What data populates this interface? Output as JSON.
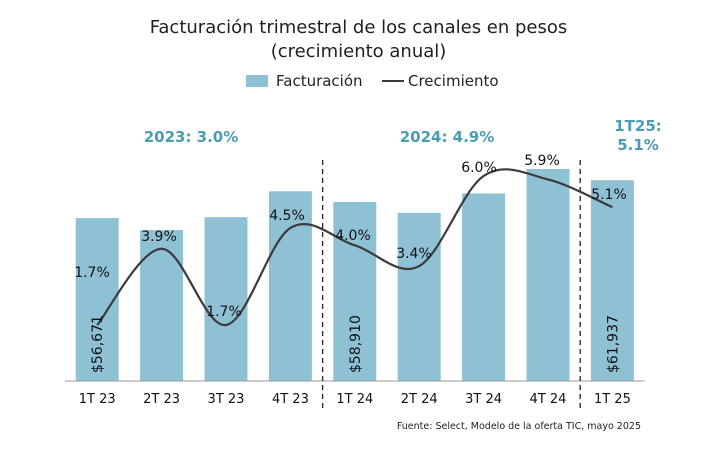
{
  "chart_data": {
    "type": "bar",
    "title_line1": "Facturación trimestral de los canales en pesos",
    "title_line2": "(crecimiento anual)",
    "legend": {
      "bar": "Facturación",
      "line": "Crecimiento",
      "placement": "top-center"
    },
    "categories": [
      "1T 23",
      "2T 23",
      "3T 23",
      "4T 23",
      "1T 24",
      "2T 24",
      "3T 24",
      "4T 24",
      "1T 25"
    ],
    "series": [
      {
        "name": "Facturación",
        "type": "bar",
        "values": [
          56671,
          55000,
          56800,
          60400,
          58910,
          57400,
          60100,
          63500,
          61937
        ],
        "labels": [
          "$56,671",
          "",
          "",
          "",
          "$58,910",
          "",
          "",
          "",
          "$61,937"
        ]
      },
      {
        "name": "Crecimiento",
        "type": "line",
        "values": [
          1.7,
          3.9,
          1.7,
          4.5,
          4.0,
          3.4,
          6.0,
          5.9,
          5.1
        ],
        "labels": [
          "1.7%",
          "3.9%",
          "1.7%",
          "4.5%",
          "4.0%",
          "3.4%",
          "6.0%",
          "5.9%",
          "5.1%"
        ]
      }
    ],
    "annual": [
      {
        "lines": [
          "2023: 3.0%"
        ]
      },
      {
        "lines": [
          "2024: 4.9%"
        ]
      },
      {
        "lines": [
          "1T25:",
          "5.1%"
        ]
      }
    ],
    "grid": false,
    "colors": {
      "bar": "#8fc1d4",
      "line": "#3b3b3b",
      "annual": "#4a9bb5"
    },
    "source": "Fuente: Select, Modelo de la oferta TIC, mayo 2025"
  }
}
